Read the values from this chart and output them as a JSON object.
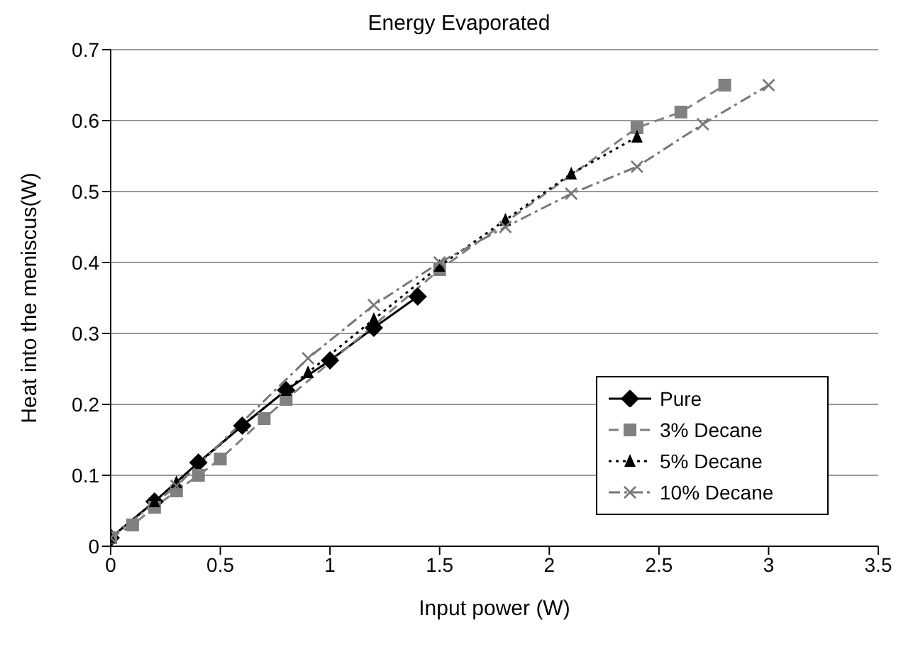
{
  "chart_data": {
    "type": "line",
    "title": "Energy Evaporated",
    "xlabel": "Input power (W)",
    "ylabel": "Heat into the meniscus(W)",
    "xlim": [
      0,
      3.5
    ],
    "xticks": [
      0,
      0.5,
      1,
      1.5,
      2,
      2.5,
      3,
      3.5
    ],
    "ylim": [
      0,
      0.7
    ],
    "yticks": [
      0,
      0.1,
      0.2,
      0.3,
      0.4,
      0.5,
      0.6,
      0.7
    ],
    "grid": "y",
    "legend": "right",
    "series": [
      {
        "name": "Pure",
        "color": "#000000",
        "marker": "diamond",
        "line_style": "solid",
        "x": [
          0,
          0.2,
          0.4,
          0.6,
          0.8,
          1,
          1.2,
          1.4
        ],
        "values": [
          0.012,
          0.063,
          0.118,
          0.17,
          0.22,
          0.262,
          0.308,
          0.352
        ]
      },
      {
        "name": "3% Decane",
        "color": "#808080",
        "marker": "square",
        "line_style": "dashed",
        "x": [
          0,
          0.1,
          0.2,
          0.3,
          0.4,
          0.5,
          0.7,
          0.8,
          1.5,
          2.4,
          2.6,
          2.8
        ],
        "values": [
          0.012,
          0.03,
          0.055,
          0.078,
          0.1,
          0.123,
          0.18,
          0.207,
          0.39,
          0.59,
          0.612,
          0.65
        ]
      },
      {
        "name": "5% Decane",
        "color": "#000000",
        "marker": "triangle",
        "line_style": "dotted",
        "x": [
          0,
          0.2,
          0.3,
          0.6,
          0.8,
          0.9,
          1.2,
          1.5,
          1.8,
          2.1,
          2.4
        ],
        "values": [
          0.012,
          0.063,
          0.09,
          0.17,
          0.22,
          0.245,
          0.32,
          0.395,
          0.46,
          0.525,
          0.577
        ]
      },
      {
        "name": "10% Decane",
        "color": "#777777",
        "marker": "cross",
        "line_style": "dashdot",
        "x": [
          0,
          0.3,
          0.9,
          1.2,
          1.5,
          1.8,
          2.1,
          2.4,
          2.7,
          3.0
        ],
        "values": [
          0.012,
          0.085,
          0.265,
          0.34,
          0.4,
          0.45,
          0.497,
          0.535,
          0.595,
          0.65
        ]
      }
    ]
  }
}
